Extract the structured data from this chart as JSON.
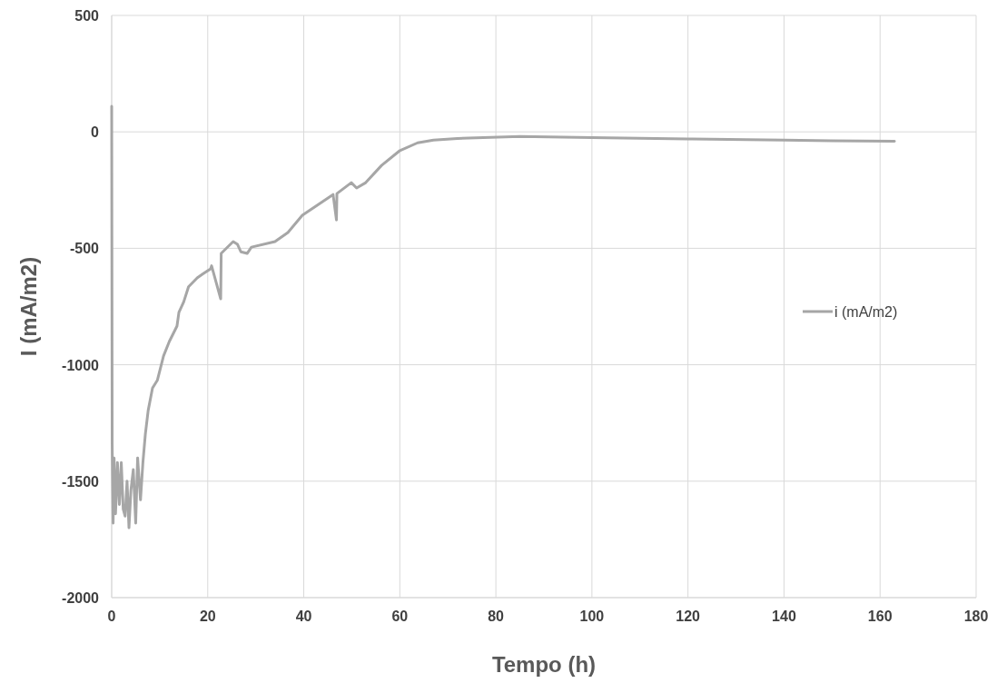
{
  "chart_data": {
    "type": "line",
    "xlabel": "Tempo (h)",
    "ylabel": "I (mA/m2)",
    "xlim": [
      0,
      180
    ],
    "xticks": [
      0,
      20,
      40,
      60,
      80,
      100,
      120,
      140,
      160,
      180
    ],
    "ylim": [
      -2000,
      500
    ],
    "yticks": [
      -2000,
      -1500,
      -1000,
      -500,
      0,
      500
    ],
    "grid": true,
    "legend": "right",
    "marker": "none",
    "line_style": "solid",
    "series": [
      {
        "name": "i (mA/m2)",
        "color": "#a6a6a6",
        "x": [
          0,
          0.1,
          0.3,
          0.5,
          0.8,
          1.2,
          1.6,
          2,
          2.4,
          2.8,
          3.2,
          3.6,
          4,
          4.5,
          5,
          5.4,
          6,
          6.5,
          7,
          7.6,
          8.5,
          9.5,
          10.8,
          12,
          13.6,
          14,
          15,
          16,
          17.8,
          19,
          20.6,
          20.8,
          22.7,
          22.8,
          25.3,
          26.2,
          26.9,
          28.2,
          29.1,
          34,
          36.7,
          39.7,
          46.1,
          46.8,
          46.9,
          49.9,
          51,
          52.9,
          56.2,
          59.9,
          63.7,
          67,
          72,
          85,
          100,
          120,
          140,
          150,
          163
        ],
        "values": [
          110,
          -1340,
          -1680,
          -1400,
          -1640,
          -1420,
          -1600,
          -1420,
          -1620,
          -1650,
          -1500,
          -1700,
          -1540,
          -1450,
          -1680,
          -1400,
          -1580,
          -1420,
          -1300,
          -1196,
          -1100,
          -1067,
          -962,
          -900,
          -834,
          -775,
          -730,
          -665,
          -627,
          -610,
          -588,
          -575,
          -717,
          -522,
          -471,
          -483,
          -515,
          -522,
          -495,
          -471,
          -432,
          -358,
          -269,
          -378,
          -265,
          -218,
          -241,
          -218,
          -144,
          -82,
          -47,
          -35,
          -28,
          -20,
          -25,
          -30,
          -35,
          -38,
          -40
        ]
      }
    ]
  }
}
